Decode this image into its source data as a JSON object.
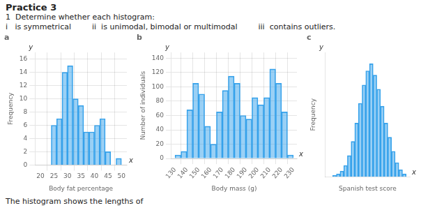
{
  "title": "Practice 3",
  "subtitle": [
    "1  Determine whether each histogram:",
    "i   is symmetrical",
    "ii  is unimodal, bimodal or multimodal",
    "iii  contains outliers."
  ],
  "annotations": [
    "The histogram shows the lengths of"
  ],
  "chart_data": [
    {
      "type": "histogram",
      "title": "a",
      "bins": [
        20,
        22,
        24,
        26,
        28,
        30,
        32,
        34,
        36,
        38,
        40,
        42,
        44,
        46,
        48,
        50
      ],
      "values": [
        0,
        0,
        6,
        7,
        14,
        15,
        10,
        9,
        5,
        5,
        6,
        7,
        2,
        0,
        1
      ],
      "xlabel": "Body fat percentage",
      "ylabel": "Frequency",
      "xlim": [
        18,
        52
      ],
      "xticks": [
        20,
        25,
        30,
        35,
        40,
        45,
        50
      ],
      "ylim": [
        0,
        17
      ],
      "yticks": [
        0,
        2,
        4,
        6,
        8,
        10,
        12,
        14,
        16
      ],
      "grid": true,
      "annotations": [
        "y",
        "x"
      ]
    },
    {
      "type": "histogram",
      "title": "b",
      "bins": [
        130,
        135,
        140,
        145,
        150,
        155,
        160,
        165,
        170,
        175,
        180,
        185,
        190,
        195,
        200,
        205,
        210,
        215,
        220,
        225,
        230
      ],
      "values": [
        5,
        10,
        68,
        105,
        90,
        45,
        20,
        65,
        95,
        115,
        105,
        60,
        55,
        85,
        75,
        85,
        125,
        105,
        65,
        5
      ],
      "xlabel": "Body mass (g)",
      "ylabel": "Number of individuals",
      "xlim": [
        127,
        233
      ],
      "xticks": [
        130,
        140,
        150,
        160,
        170,
        180,
        190,
        200,
        210,
        220,
        230
      ],
      "ylim": [
        0,
        148
      ],
      "yticks": [
        0,
        20,
        40,
        60,
        80,
        100,
        120,
        140
      ],
      "grid": true,
      "annotations": [
        "y",
        "x"
      ]
    },
    {
      "type": "histogram",
      "title": "c",
      "bins": [
        51,
        53,
        55,
        57,
        59,
        61,
        63,
        65,
        67,
        69,
        71,
        73,
        75,
        77,
        79,
        81,
        83,
        85,
        87,
        89,
        91,
        93
      ],
      "values": [
        0,
        1,
        2,
        4,
        8,
        15,
        25,
        38,
        52,
        65,
        75,
        80,
        72,
        62,
        50,
        38,
        28,
        18,
        10,
        5,
        2
      ],
      "xlabel": "Spanish test score",
      "ylabel": "Frequency",
      "xlim": [
        49,
        95
      ],
      "ylim": [
        0,
        88
      ],
      "grid": false,
      "tick_labels": false,
      "annotations": [
        "y",
        "x"
      ]
    }
  ]
}
